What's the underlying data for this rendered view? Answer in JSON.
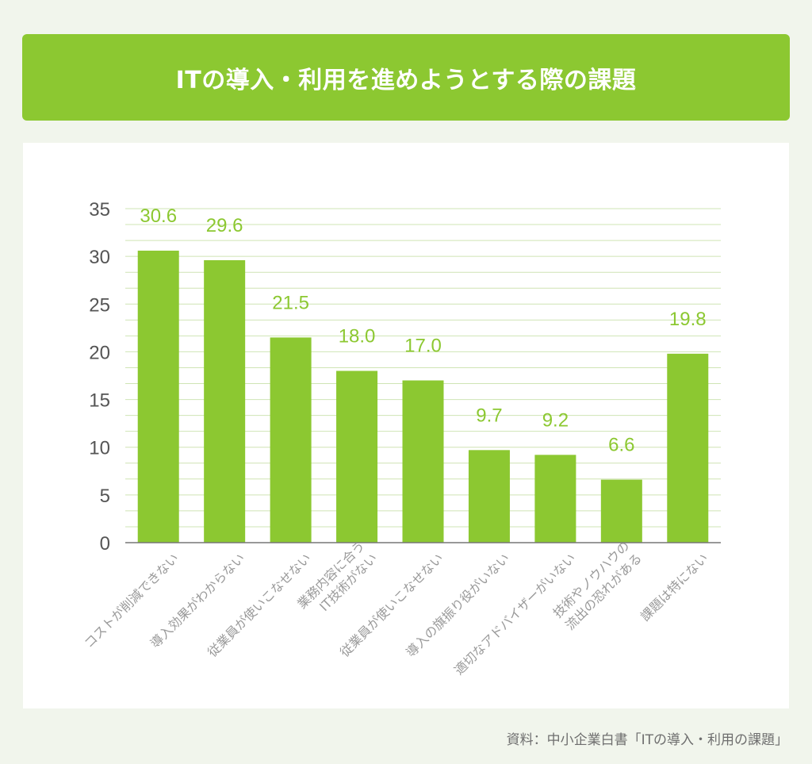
{
  "title": "ITの導入・利用を進めようとする際の課題",
  "source": "資料：中小企業白書「ITの導入・利用の課題」",
  "colors": {
    "banner": "#8cc831",
    "bar": "#8cc831",
    "value_label": "#8cc831",
    "grid": "#cfe4b4",
    "axis_text": "#555555",
    "category_text": "#9a9a9a"
  },
  "chart_data": {
    "type": "bar",
    "title": "",
    "xlabel": "",
    "ylabel": "",
    "ylim": [
      0,
      35
    ],
    "y_ticks": [
      0,
      5,
      10,
      15,
      20,
      25,
      30,
      35
    ],
    "grid": true,
    "categories": [
      [
        "コストが削減できない"
      ],
      [
        "導入効果がわからない"
      ],
      [
        "従業員が使いこなせない"
      ],
      [
        "業務内容に合う",
        "IT技術がない"
      ],
      [
        "従業員が使いこなせない"
      ],
      [
        "導入の旗振り役がいない"
      ],
      [
        "適切なアドバイザーがいない"
      ],
      [
        "技術やノウハウの",
        "流出の恐れがある"
      ],
      [
        "課題は特にない"
      ]
    ],
    "values": [
      30.6,
      29.6,
      21.5,
      18.0,
      17.0,
      9.7,
      9.2,
      6.6,
      19.8
    ],
    "value_labels": [
      "30.6",
      "29.6",
      "21.5",
      "18.0",
      "17.0",
      "9.7",
      "9.2",
      "6.6",
      "19.8"
    ]
  }
}
